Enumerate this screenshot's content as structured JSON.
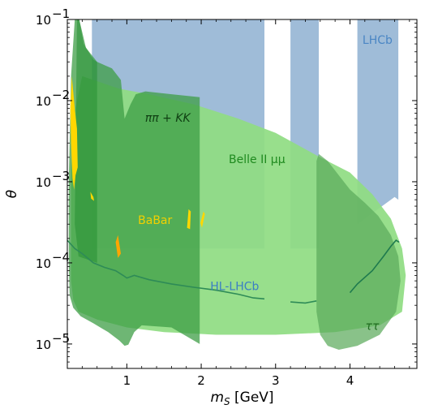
{
  "chart_data": {
    "type": "area",
    "title": "",
    "xlabel": "m_S [GeV]",
    "ylabel": "θ",
    "xlim": [
      0.2,
      4.9
    ],
    "ylim": [
      5e-06,
      0.1
    ],
    "yscale": "log",
    "grid": false,
    "x_ticks": [
      {
        "value": 1,
        "label": "1"
      },
      {
        "value": 2,
        "label": "2"
      },
      {
        "value": 3,
        "label": "3"
      },
      {
        "value": 4,
        "label": "4"
      }
    ],
    "y_ticks": [
      {
        "value": 0.1,
        "label": "10",
        "exp": "−1"
      },
      {
        "value": 0.01,
        "label": "10",
        "exp": "−2"
      },
      {
        "value": 0.001,
        "label": "10",
        "exp": "−3"
      },
      {
        "value": 0.0001,
        "label": "10",
        "exp": "−4"
      },
      {
        "value": 1e-05,
        "label": "10",
        "exp": "−5"
      }
    ],
    "colors": {
      "lhcb": "#9ab8d6",
      "belle": "#8fdc82",
      "tautau": "#5bab5b",
      "pipikk": "#2a9a3a",
      "babar_yellow": "#ffd700",
      "babar_orange": "#ffa500",
      "hl_lhcb_line": "#2e8b57",
      "tau_line": "#1e7a4e"
    },
    "regions": [
      {
        "name": "LHCb",
        "label": "LHCb",
        "label_pos": [
          4.37,
          0.05
        ],
        "label_color": "#4a86c4",
        "color": "#9ab8d6",
        "opacity": 0.95,
        "points": [
          [
            0.53,
            0.1
          ],
          [
            2.85,
            0.1
          ],
          [
            2.85,
            0.00015
          ],
          [
            0.53,
            0.00015
          ]
        ]
      },
      {
        "name": "LHCb-2",
        "label": "",
        "color": "#9ab8d6",
        "opacity": 0.95,
        "points": [
          [
            3.2,
            0.1
          ],
          [
            3.58,
            0.1
          ],
          [
            3.58,
            0.00015
          ],
          [
            3.2,
            0.00015
          ]
        ]
      },
      {
        "name": "LHCb-3",
        "label": "",
        "color": "#9ab8d6",
        "opacity": 0.95,
        "points": [
          [
            4.1,
            0.1
          ],
          [
            4.65,
            0.1
          ],
          [
            4.65,
            0.0006
          ],
          [
            4.6,
            0.00065
          ],
          [
            4.55,
            0.0006
          ],
          [
            4.1,
            0.0003
          ]
        ]
      },
      {
        "name": "Belle II",
        "label": "Belle II μμ",
        "label_pos": [
          2.75,
          0.0017
        ],
        "label_color": "#1f8a1f",
        "color": "#8fdc82",
        "opacity": 0.92,
        "points": [
          [
            0.4,
            0.02
          ],
          [
            0.9,
            0.014
          ],
          [
            1.3,
            0.012
          ],
          [
            1.9,
            0.009
          ],
          [
            2.5,
            0.006
          ],
          [
            3.0,
            0.004
          ],
          [
            3.6,
            0.002
          ],
          [
            4.0,
            0.0013
          ],
          [
            4.3,
            0.0007
          ],
          [
            4.55,
            0.00035
          ],
          [
            4.7,
            0.00015
          ],
          [
            4.75,
            7e-05
          ],
          [
            4.7,
            2.5e-05
          ],
          [
            4.4,
            1.7e-05
          ],
          [
            3.8,
            1.4e-05
          ],
          [
            3.0,
            1.3e-05
          ],
          [
            2.2,
            1.3e-05
          ],
          [
            1.5,
            1.4e-05
          ],
          [
            1.0,
            1.6e-05
          ],
          [
            0.6,
            2e-05
          ],
          [
            0.35,
            2.5e-05
          ],
          [
            0.28,
            3.5e-05
          ],
          [
            0.25,
            6e-05
          ],
          [
            0.25,
            0.001
          ],
          [
            0.28,
            0.006
          ]
        ]
      },
      {
        "name": "tautau",
        "label": "ττ",
        "label_pos": [
          4.3,
          1.5e-05
        ],
        "label_color": "#1f6b1f",
        "color": "#5bab5b",
        "opacity": 0.72,
        "points": [
          [
            3.58,
            0.0022
          ],
          [
            3.7,
            0.0018
          ],
          [
            3.85,
            0.0012
          ],
          [
            4.0,
            0.0008
          ],
          [
            4.2,
            0.00055
          ],
          [
            4.38,
            0.00038
          ],
          [
            4.55,
            0.00022
          ],
          [
            4.65,
            0.00012
          ],
          [
            4.68,
            6e-05
          ],
          [
            4.62,
            2.5e-05
          ],
          [
            4.4,
            1.3e-05
          ],
          [
            4.1,
            9.5e-06
          ],
          [
            3.85,
            8.5e-06
          ],
          [
            3.7,
            9.5e-06
          ],
          [
            3.6,
            1.3e-05
          ],
          [
            3.55,
            2.5e-05
          ],
          [
            3.55,
            0.0005
          ],
          [
            3.55,
            0.0018
          ]
        ]
      },
      {
        "name": "pipi-KK",
        "label": "ππ + KK",
        "label_pos": [
          1.55,
          0.0055
        ],
        "label_color": "#0f3f12",
        "color": "#3e9e45",
        "opacity": 0.75,
        "points": [
          [
            0.3,
            0.1
          ],
          [
            0.36,
            0.1
          ],
          [
            0.45,
            0.045
          ],
          [
            0.6,
            0.03
          ],
          [
            0.8,
            0.025
          ],
          [
            0.92,
            0.018
          ],
          [
            0.97,
            0.006
          ],
          [
            1.05,
            0.009
          ],
          [
            1.12,
            0.012
          ],
          [
            1.25,
            0.013
          ],
          [
            1.6,
            0.012
          ],
          [
            1.98,
            0.011
          ],
          [
            1.98,
            1e-05
          ],
          [
            1.6,
            1.6e-05
          ],
          [
            1.2,
            1.7e-05
          ],
          [
            1.1,
            1.4e-05
          ],
          [
            1.02,
            9.8e-06
          ],
          [
            0.97,
            9.5e-06
          ],
          [
            0.9,
            1.1e-05
          ],
          [
            0.75,
            1.4e-05
          ],
          [
            0.55,
            1.8e-05
          ],
          [
            0.38,
            2.2e-05
          ],
          [
            0.28,
            2.8e-05
          ],
          [
            0.23,
            4e-05
          ],
          [
            0.22,
            0.0001
          ],
          [
            0.22,
            0.001
          ],
          [
            0.25,
            0.02
          ]
        ]
      },
      {
        "name": "pipi-KK-dark",
        "label": "",
        "color": "#278f33",
        "opacity": 0.55,
        "points": [
          [
            0.33,
            0.1
          ],
          [
            0.36,
            0.1
          ],
          [
            0.42,
            0.05
          ],
          [
            0.55,
            0.032
          ],
          [
            0.6,
            0.03
          ],
          [
            0.6,
            0.0001
          ],
          [
            0.35,
            0.00012
          ],
          [
            0.3,
            0.0003
          ]
        ]
      },
      {
        "name": "BaBar",
        "label": "BaBar",
        "label_pos": [
          1.38,
          0.0003
        ],
        "label_color": "#f2d000",
        "color": "#ffd700",
        "opacity": 1,
        "points": [
          [
            0.26,
            0.02
          ],
          [
            0.3,
            0.008
          ],
          [
            0.33,
            0.0045
          ],
          [
            0.34,
            0.0015
          ],
          [
            0.31,
            0.0012
          ],
          [
            0.29,
            0.0008
          ],
          [
            0.27,
            0.0011
          ],
          [
            0.25,
            0.003
          ],
          [
            0.24,
            0.008
          ]
        ]
      },
      {
        "name": "BaBar-2",
        "label": "",
        "color": "#ffd700",
        "opacity": 1,
        "points": [
          [
            0.51,
            0.00075
          ],
          [
            0.55,
            0.00065
          ],
          [
            0.56,
            0.00058
          ],
          [
            0.52,
            0.00062
          ]
        ]
      },
      {
        "name": "BaBar-3",
        "label": "",
        "color": "#ffd700",
        "opacity": 1,
        "points": [
          [
            1.83,
            0.00046
          ],
          [
            1.86,
            0.00043
          ],
          [
            1.85,
            0.00026
          ],
          [
            1.81,
            0.00027
          ]
        ]
      },
      {
        "name": "BaBar-4",
        "label": "",
        "color": "#ffd700",
        "opacity": 1,
        "points": [
          [
            2.03,
            0.00043
          ],
          [
            2.05,
            0.0004
          ],
          [
            2.01,
            0.00027
          ],
          [
            1.99,
            0.00031
          ]
        ]
      },
      {
        "name": "BaBar-orange",
        "label": "",
        "color": "#ffa500",
        "opacity": 1,
        "points": [
          [
            0.88,
            0.00022
          ],
          [
            0.92,
            0.00013
          ],
          [
            0.88,
            0.000115
          ],
          [
            0.85,
            0.00018
          ]
        ]
      }
    ],
    "lines": [
      {
        "name": "HL-LHCb",
        "label": "HL-LHCb",
        "label_pos": [
          2.45,
          4.6e-05
        ],
        "label_color": "#3a7ec4",
        "color": "#2e8b57",
        "points": [
          [
            0.2,
            0.00019
          ],
          [
            0.3,
            0.00015
          ],
          [
            0.4,
            0.00013
          ],
          [
            0.55,
            0.0001
          ],
          [
            0.7,
            8.8e-05
          ],
          [
            0.85,
            8e-05
          ],
          [
            0.95,
            7e-05
          ],
          [
            1.0,
            6.5e-05
          ],
          [
            1.1,
            7e-05
          ],
          [
            1.3,
            6.2e-05
          ],
          [
            1.6,
            5.5e-05
          ],
          [
            1.9,
            5e-05
          ],
          [
            2.2,
            4.6e-05
          ],
          [
            2.5,
            4.1e-05
          ],
          [
            2.7,
            3.7e-05
          ],
          [
            2.85,
            3.6e-05
          ]
        ]
      },
      {
        "name": "HL-LHCb-2",
        "label": "",
        "color": "#2e8b57",
        "points": [
          [
            3.2,
            3.3e-05
          ],
          [
            3.4,
            3.2e-05
          ],
          [
            3.55,
            3.4e-05
          ]
        ]
      },
      {
        "name": "HL-LHCb-3",
        "label": "",
        "color": "#1e7a4e",
        "points": [
          [
            4.0,
            4.3e-05
          ],
          [
            4.1,
            5.5e-05
          ],
          [
            4.3,
            8e-05
          ],
          [
            4.45,
            0.00012
          ],
          [
            4.55,
            0.00016
          ],
          [
            4.62,
            0.00019
          ],
          [
            4.66,
            0.00018
          ]
        ]
      }
    ]
  }
}
